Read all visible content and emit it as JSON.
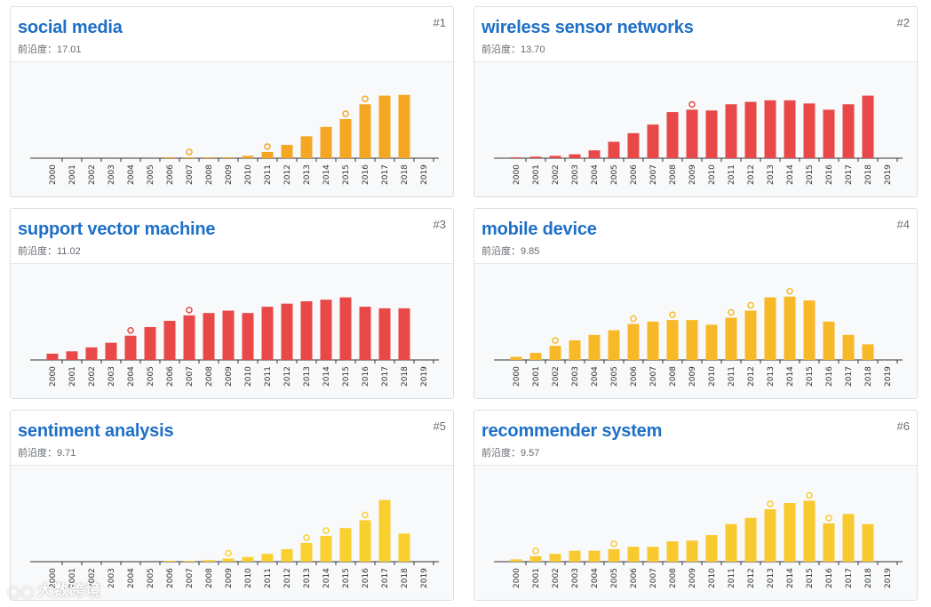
{
  "watermark": {
    "icon": "wechat-icon",
    "text": "大数跨境"
  },
  "chart_data": [
    {
      "type": "bar",
      "rank": "#1",
      "title": "social media",
      "metric_label": "前沿度：",
      "metric_value": "17.01",
      "color": "#F5A623",
      "categories": [
        "2000",
        "2001",
        "2002",
        "2003",
        "2004",
        "2005",
        "2006",
        "2007",
        "2008",
        "2009",
        "2010",
        "2011",
        "2012",
        "2013",
        "2014",
        "2015",
        "2016",
        "2017",
        "2018",
        "2019"
      ],
      "values": [
        0,
        0,
        0,
        0,
        0,
        0,
        0.2,
        0.5,
        0.5,
        1,
        3,
        8,
        17,
        28,
        40,
        50,
        69,
        80,
        81,
        0
      ],
      "markers": [
        "2007",
        "2011",
        "2015",
        "2016"
      ],
      "ylim": [
        0,
        100
      ]
    },
    {
      "type": "bar",
      "rank": "#2",
      "title": "wireless sensor networks",
      "metric_label": "前沿度：",
      "metric_value": "13.70",
      "color": "#E84848",
      "categories": [
        "2000",
        "2001",
        "2002",
        "2003",
        "2004",
        "2005",
        "2006",
        "2007",
        "2008",
        "2009",
        "2010",
        "2011",
        "2012",
        "2013",
        "2014",
        "2015",
        "2016",
        "2017",
        "2018",
        "2019"
      ],
      "values": [
        1,
        2,
        3,
        5,
        10,
        21,
        32,
        43,
        59,
        62,
        61,
        69,
        72,
        74,
        74,
        70,
        62,
        69,
        80,
        0
      ],
      "markers": [
        "2009"
      ],
      "ylim": [
        0,
        100
      ]
    },
    {
      "type": "bar",
      "rank": "#3",
      "title": "support vector machine",
      "metric_label": "前沿度：",
      "metric_value": "11.02",
      "color": "#E84848",
      "categories": [
        "2000",
        "2001",
        "2002",
        "2003",
        "2004",
        "2005",
        "2006",
        "2007",
        "2008",
        "2009",
        "2010",
        "2011",
        "2012",
        "2013",
        "2014",
        "2015",
        "2016",
        "2017",
        "2018",
        "2019"
      ],
      "values": [
        8,
        11,
        16,
        22,
        31,
        42,
        50,
        57,
        60,
        63,
        60,
        68,
        72,
        75,
        77,
        80,
        68,
        66,
        66,
        0
      ],
      "markers": [
        "2004",
        "2007"
      ],
      "ylim": [
        0,
        100
      ]
    },
    {
      "type": "bar",
      "rank": "#4",
      "title": "mobile device",
      "metric_label": "前沿度：",
      "metric_value": "9.85",
      "color": "#F7B928",
      "categories": [
        "2000",
        "2001",
        "2002",
        "2003",
        "2004",
        "2005",
        "2006",
        "2007",
        "2008",
        "2009",
        "2010",
        "2011",
        "2012",
        "2013",
        "2014",
        "2015",
        "2016",
        "2017",
        "2018",
        "2019"
      ],
      "values": [
        4,
        9,
        18,
        25,
        32,
        38,
        46,
        49,
        51,
        51,
        45,
        54,
        63,
        80,
        81,
        76,
        49,
        32,
        20,
        0
      ],
      "markers": [
        "2002",
        "2006",
        "2008",
        "2011",
        "2012",
        "2014"
      ],
      "ylim": [
        0,
        100
      ]
    },
    {
      "type": "bar",
      "rank": "#5",
      "title": "sentiment analysis",
      "metric_label": "前沿度：",
      "metric_value": "9.71",
      "color": "#F9D030",
      "categories": [
        "2000",
        "2001",
        "2002",
        "2003",
        "2004",
        "2005",
        "2006",
        "2007",
        "2008",
        "2009",
        "2010",
        "2011",
        "2012",
        "2013",
        "2014",
        "2015",
        "2016",
        "2017",
        "2018",
        "2019"
      ],
      "values": [
        0,
        0,
        0,
        0,
        0,
        0,
        0.5,
        1,
        2,
        4,
        6,
        10,
        16,
        24,
        33,
        43,
        53,
        79,
        36,
        0
      ],
      "markers": [
        "2009",
        "2013",
        "2014",
        "2016"
      ],
      "ylim": [
        0,
        100
      ]
    },
    {
      "type": "bar",
      "rank": "#6",
      "title": "recommender system",
      "metric_label": "前沿度：",
      "metric_value": "9.57",
      "color": "#F9C930",
      "categories": [
        "2000",
        "2001",
        "2002",
        "2003",
        "2004",
        "2005",
        "2006",
        "2007",
        "2008",
        "2009",
        "2010",
        "2011",
        "2012",
        "2013",
        "2014",
        "2015",
        "2016",
        "2017",
        "2018",
        "2019"
      ],
      "values": [
        3,
        7,
        10,
        14,
        14,
        16,
        19,
        19,
        26,
        27,
        34,
        48,
        56,
        67,
        75,
        78,
        49,
        61,
        48,
        0
      ],
      "markers": [
        "2001",
        "2005",
        "2013",
        "2015",
        "2016"
      ],
      "ylim": [
        0,
        100
      ]
    }
  ]
}
